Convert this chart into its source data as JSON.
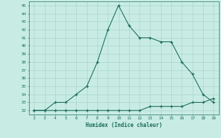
{
  "x": [
    2,
    3,
    4,
    5,
    6,
    7,
    8,
    9,
    10,
    11,
    12,
    13,
    14,
    15,
    16,
    17,
    18,
    19
  ],
  "y_main": [
    32,
    32,
    33,
    33,
    34,
    35,
    38,
    42,
    45,
    42.5,
    41,
    41,
    40.5,
    40.5,
    38,
    36.5,
    34,
    33
  ],
  "y_lower": [
    32,
    32,
    32,
    32,
    32,
    32,
    32,
    32,
    32,
    32,
    32,
    32.5,
    32.5,
    32.5,
    32.5,
    33,
    33,
    33.5
  ],
  "xlabel": "Humidex (Indice chaleur)",
  "xlim": [
    1.5,
    19.5
  ],
  "ylim": [
    31.5,
    45.5
  ],
  "yticks": [
    32,
    33,
    34,
    35,
    36,
    37,
    38,
    39,
    40,
    41,
    42,
    43,
    44,
    45
  ],
  "xticks": [
    2,
    3,
    4,
    5,
    6,
    7,
    8,
    9,
    10,
    11,
    12,
    13,
    14,
    15,
    16,
    17,
    18,
    19
  ],
  "line_color": "#1a6b5a",
  "bg_color": "#c8ece4",
  "grid_color": "#a8d4ca"
}
